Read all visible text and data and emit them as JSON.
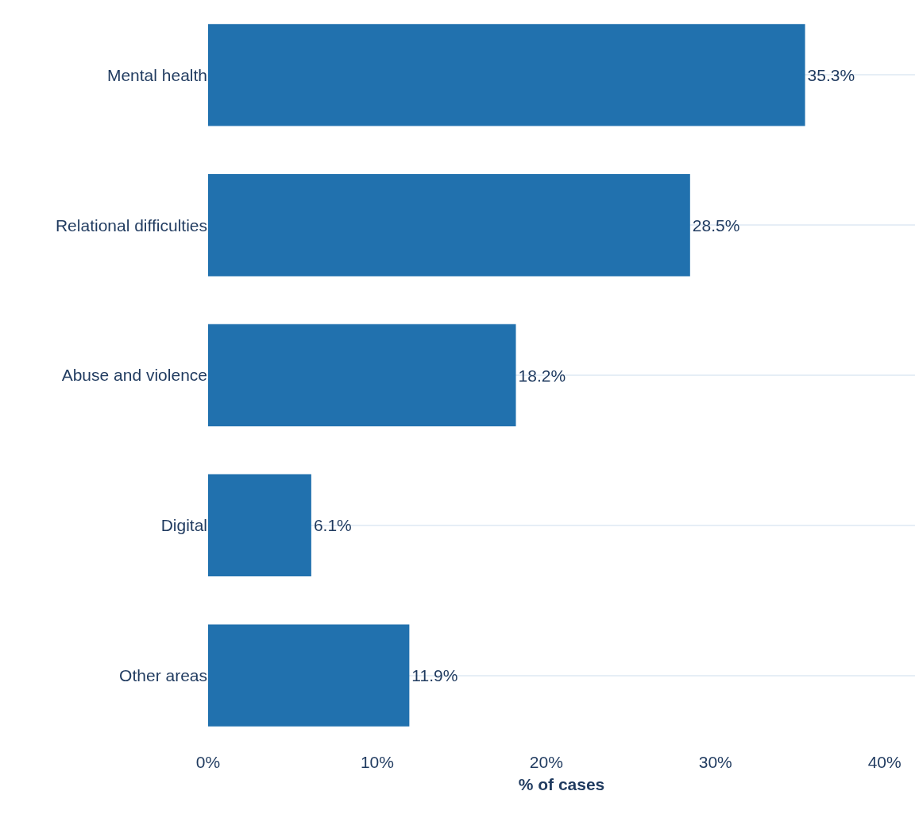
{
  "chart_data": {
    "type": "bar",
    "orientation": "horizontal",
    "xlabel": "% of cases",
    "categories": [
      "Mental health",
      "Relational difficulties",
      "Abuse and violence",
      "Digital",
      "Other areas"
    ],
    "values": [
      35.3,
      28.5,
      18.2,
      6.1,
      11.9
    ],
    "value_labels": [
      "35.3%",
      "28.5%",
      "18.2%",
      "6.1%",
      "11.9%"
    ],
    "color": "#2171ae",
    "xlim": [
      0,
      41.8
    ],
    "xticks": [
      {
        "value": 0,
        "label": "0%"
      },
      {
        "value": 10,
        "label": "10%"
      },
      {
        "value": 20,
        "label": "20%"
      },
      {
        "value": 30,
        "label": "30%"
      },
      {
        "value": 40,
        "label": "40%"
      }
    ],
    "grid": "y"
  }
}
